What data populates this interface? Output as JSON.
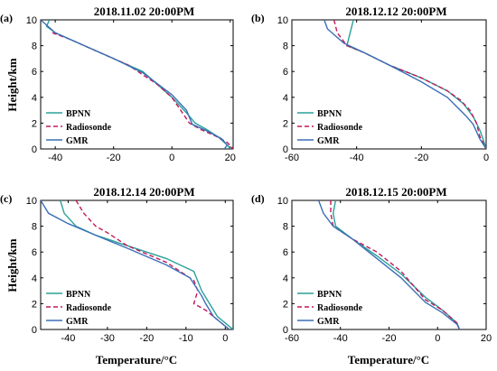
{
  "figure": {
    "ylabel": "Height/km",
    "xlabel": "Temperature/°C"
  },
  "colors": {
    "BPNN": "#2aa198",
    "Radiosonde": "#c2185b",
    "GMR": "#3b6fb6"
  },
  "chart_data": [
    {
      "type": "line",
      "panel_label": "(a)",
      "title": "2018.11.02 20:00PM",
      "xlim": [
        -45,
        21
      ],
      "ylim": [
        0,
        10
      ],
      "xticks": [
        -40,
        -20,
        0,
        20
      ],
      "yticks": [
        0,
        2,
        4,
        6,
        8,
        10
      ],
      "legend": "left",
      "series": [
        {
          "name": "BPNN",
          "style": "solid",
          "x": [
            -42,
            -43,
            -40,
            -30,
            -20,
            -10,
            0,
            5,
            8,
            12,
            16,
            19,
            20
          ],
          "y": [
            10,
            9.5,
            9,
            8,
            7,
            6,
            4,
            2.8,
            2,
            1.5,
            0.9,
            0.3,
            0
          ]
        },
        {
          "name": "Radiosonde",
          "style": "dashed",
          "x": [
            -41,
            -35,
            -25,
            -15,
            -5,
            0,
            6,
            10,
            15,
            19,
            21
          ],
          "y": [
            9,
            8.5,
            7.5,
            6.5,
            5,
            4,
            2,
            1.5,
            1,
            0.5,
            0
          ]
        },
        {
          "name": "GMR",
          "style": "solid",
          "x": [
            -45,
            -40,
            -30,
            -20,
            -10,
            0,
            5,
            7,
            12,
            17,
            19,
            18
          ],
          "y": [
            10,
            9,
            8,
            7,
            5.9,
            4.2,
            3,
            1.9,
            1.4,
            0.8,
            0.3,
            0
          ]
        }
      ]
    },
    {
      "type": "line",
      "panel_label": "(b)",
      "title": "2018.12.12 20:00PM",
      "xlim": [
        -60,
        0
      ],
      "ylim": [
        0,
        10
      ],
      "xticks": [
        -60,
        -40,
        -20,
        0
      ],
      "yticks": [
        0,
        2,
        4,
        6,
        8,
        10
      ],
      "legend": "left",
      "series": [
        {
          "name": "BPNN",
          "style": "solid",
          "x": [
            -41,
            -42,
            -43,
            -38,
            -30,
            -20,
            -12,
            -7,
            -4,
            -2,
            -1,
            0
          ],
          "y": [
            10,
            9,
            8,
            7.5,
            6.5,
            5.5,
            4.5,
            3.5,
            2.5,
            1.5,
            0.8,
            0
          ]
        },
        {
          "name": "Radiosonde",
          "style": "dashed",
          "x": [
            -47,
            -46,
            -43,
            -38,
            -30,
            -20,
            -12,
            -8,
            -5,
            -3,
            -2,
            0
          ],
          "y": [
            10,
            9,
            8,
            7.5,
            6.5,
            5.5,
            4.5,
            3.8,
            3,
            2,
            1,
            0
          ]
        },
        {
          "name": "GMR",
          "style": "solid",
          "x": [
            -50,
            -49,
            -44,
            -38,
            -30,
            -20,
            -12,
            -6,
            -4,
            -2,
            0
          ],
          "y": [
            10,
            9.3,
            8.2,
            7.5,
            6.5,
            5.2,
            4,
            2.5,
            1.9,
            0.8,
            0
          ]
        }
      ]
    },
    {
      "type": "line",
      "panel_label": "(c)",
      "title": "2018.12.14 20:00PM",
      "xlim": [
        -47,
        2
      ],
      "ylim": [
        0,
        10
      ],
      "xticks": [
        -40,
        -30,
        -20,
        -10,
        0
      ],
      "yticks": [
        0,
        2,
        4,
        6,
        8,
        10
      ],
      "legend": "left",
      "series": [
        {
          "name": "BPNN",
          "style": "solid",
          "x": [
            -42,
            -41,
            -38,
            -33,
            -25,
            -15,
            -8,
            -6,
            -4,
            -3,
            -2,
            2
          ],
          "y": [
            10,
            9,
            8,
            7.3,
            6.5,
            5.5,
            4.5,
            3,
            2,
            1.5,
            1,
            0
          ]
        },
        {
          "name": "Radiosonde",
          "style": "dashed",
          "x": [
            -38,
            -36,
            -33,
            -30,
            -25,
            -15,
            -8,
            -7,
            -8,
            -5,
            -3,
            1
          ],
          "y": [
            10,
            9,
            8,
            7.5,
            6.5,
            5.2,
            3.8,
            3,
            2,
            1.5,
            1,
            0
          ]
        },
        {
          "name": "GMR",
          "style": "solid",
          "x": [
            -47,
            -45,
            -40,
            -33,
            -25,
            -15,
            -9,
            -6,
            -5,
            -3,
            1
          ],
          "y": [
            10,
            9,
            8.2,
            7.3,
            6.3,
            5,
            4,
            2.6,
            2,
            1,
            0
          ]
        }
      ]
    },
    {
      "type": "line",
      "panel_label": "(d)",
      "title": "2018.12.15 20:00PM",
      "xlim": [
        -60,
        20
      ],
      "ylim": [
        0,
        10
      ],
      "xticks": [
        -60,
        -40,
        -20,
        0,
        20
      ],
      "yticks": [
        0,
        2,
        4,
        6,
        8,
        10
      ],
      "legend": "left",
      "series": [
        {
          "name": "BPNN",
          "style": "solid",
          "x": [
            -42,
            -43,
            -42,
            -35,
            -25,
            -15,
            -5,
            2,
            8,
            9
          ],
          "y": [
            10,
            9,
            8,
            7,
            5.7,
            4.3,
            2.5,
            1.5,
            0.5,
            0
          ]
        },
        {
          "name": "Radiosonde",
          "style": "dashed",
          "x": [
            -44,
            -44,
            -43,
            -35,
            -25,
            -15,
            -5,
            2,
            8,
            9
          ],
          "y": [
            10,
            9,
            8,
            7,
            6,
            4.5,
            2.3,
            1.5,
            0.5,
            0
          ]
        },
        {
          "name": "GMR",
          "style": "solid",
          "x": [
            -49,
            -47,
            -43,
            -35,
            -25,
            -15,
            -5,
            2,
            8,
            9
          ],
          "y": [
            10,
            9,
            8,
            7,
            5.5,
            4,
            2.1,
            1.3,
            0.4,
            0
          ]
        }
      ]
    }
  ]
}
